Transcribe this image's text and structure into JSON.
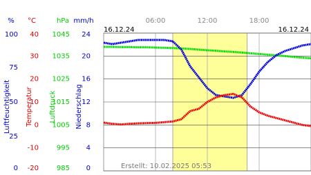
{
  "chart_data": {
    "type": "line",
    "date_left": "16.12.24",
    "date_right": "16.12.24",
    "created": "Erstellt: 10.02.2025 05:53",
    "x": [
      0,
      1,
      2,
      3,
      4,
      5,
      6,
      7,
      8,
      9,
      10,
      11,
      12,
      13,
      14,
      15,
      16,
      17,
      18,
      19,
      20,
      21,
      22,
      23,
      24
    ],
    "xlim": [
      0,
      24
    ],
    "xticks": [
      {
        "value": 6,
        "label": "06:00"
      },
      {
        "value": 12,
        "label": "12:00"
      },
      {
        "value": 18,
        "label": "18:00"
      }
    ],
    "shaded_range": [
      8,
      16.6
    ],
    "grid": true,
    "axes": [
      {
        "unit": "%",
        "title": "Luftfeuchtigkeit",
        "color": "#0000cc",
        "lim": [
          0,
          100
        ],
        "ticks": [
          100,
          75,
          50,
          25,
          0
        ]
      },
      {
        "unit": "°C",
        "title": "Temperatur",
        "color": "#dd0000",
        "lim": [
          -20,
          40
        ],
        "ticks": [
          40,
          30,
          20,
          10,
          0,
          -10,
          -20
        ]
      },
      {
        "unit": "hPa",
        "title": "Luftdruck",
        "color": "#00cc00",
        "lim": [
          985,
          1045
        ],
        "ticks": [
          1045,
          1035,
          1025,
          1015,
          1005,
          995,
          985
        ]
      },
      {
        "unit": "mm/h",
        "title": "Niederschlag",
        "color": "#0000cc",
        "lim": [
          0,
          24
        ],
        "ticks": [
          24,
          20,
          16,
          12,
          8,
          4,
          0
        ]
      }
    ],
    "series": [
      {
        "axis": 2,
        "color": "#00dd00",
        "values": [
          1039,
          1039,
          1038.9,
          1038.9,
          1038.8,
          1038.8,
          1038.7,
          1038.6,
          1038.5,
          1038.3,
          1038.1,
          1037.8,
          1037.5,
          1037.3,
          1037,
          1036.8,
          1036.5,
          1036.2,
          1035.9,
          1035.6,
          1035.3,
          1035,
          1034.6,
          1034.3,
          1034
        ]
      },
      {
        "axis": 0,
        "color": "#0000dd",
        "values": [
          93,
          92,
          93,
          94,
          95,
          95,
          95,
          95,
          94,
          88,
          76,
          68,
          60,
          55,
          54,
          53,
          55,
          63,
          72,
          79,
          84,
          87,
          89,
          91,
          92
        ]
      },
      {
        "axis": 1,
        "color": "#ee0000",
        "values": [
          1,
          0.5,
          0.2,
          0.5,
          0.7,
          0.8,
          0.9,
          1.2,
          1.5,
          2.5,
          6,
          7,
          10,
          12,
          13,
          13.5,
          12,
          8,
          5.5,
          4,
          3,
          2,
          1,
          0,
          -0.5
        ]
      }
    ]
  }
}
